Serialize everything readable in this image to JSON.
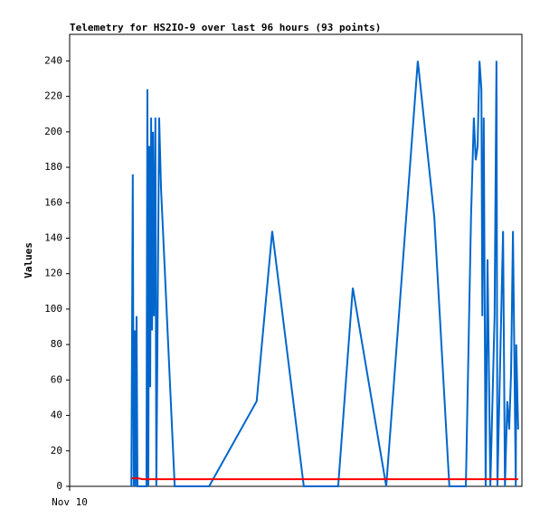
{
  "chart_data": {
    "type": "line",
    "title": "Telemetry for HS2IO-9 over last 96 hours (93 points)",
    "y_label": "Values",
    "xlim": [
      0,
      96
    ],
    "xticks": [
      {
        "value": 0,
        "label": "Nov 10"
      }
    ],
    "ylim": [
      0,
      255
    ],
    "yticks": [
      0,
      20,
      40,
      60,
      80,
      100,
      120,
      140,
      160,
      180,
      200,
      220,
      240
    ],
    "series": [
      {
        "color": "#0066cc",
        "x": [
          13.1,
          13.4,
          13.6,
          13.8,
          14.0,
          14.2,
          14.4,
          16.3,
          16.5,
          16.7,
          16.9,
          17.1,
          17.3,
          17.5,
          17.7,
          17.9,
          18.2,
          18.4,
          19.0,
          19.4,
          22.3,
          29.6,
          39.7,
          43.0,
          49.7,
          57.0,
          60.1,
          67.2,
          73.9,
          77.4,
          80.6,
          84.1,
          85.2,
          85.8,
          86.2,
          86.6,
          87.0,
          87.4,
          87.6,
          87.9,
          88.3,
          88.7,
          89.3,
          90.2,
          90.6,
          90.8,
          91.2,
          91.6,
          92.0,
          92.4,
          92.9,
          93.3,
          93.7,
          94.1,
          94.7,
          94.8,
          95.2
        ],
        "values": [
          0,
          176,
          0,
          88,
          0,
          96,
          0,
          0,
          224,
          0,
          192,
          56,
          208,
          88,
          200,
          96,
          208,
          0,
          208,
          168,
          0,
          0,
          48,
          144,
          0,
          0,
          112,
          0,
          240,
          152,
          0,
          0,
          152,
          208,
          184,
          192,
          240,
          224,
          96,
          208,
          0,
          128,
          0,
          96,
          240,
          0,
          48,
          96,
          144,
          0,
          48,
          32,
          64,
          144,
          0,
          80,
          32
        ]
      },
      {
        "color": "#ff0000",
        "x": [
          13.1,
          14.6,
          15.4,
          95.2
        ],
        "values": [
          4.5,
          4.5,
          4,
          4
        ]
      }
    ]
  }
}
